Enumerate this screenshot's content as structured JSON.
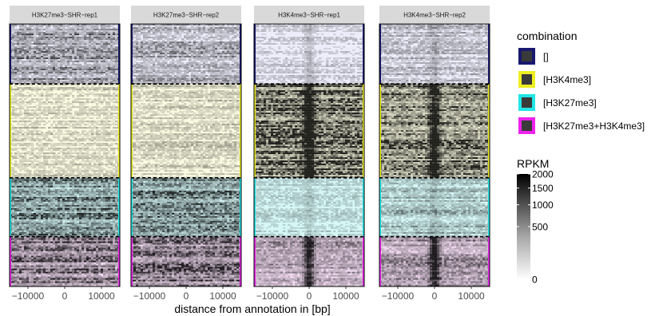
{
  "chart_data": {
    "type": "heatmap",
    "title": "",
    "xlabel": "distance from annotation in [bp]",
    "ylabel": "",
    "xlim": [
      -15000,
      15000
    ],
    "x_ticks": [
      -10000,
      0,
      10000
    ],
    "x_tick_labels": [
      "−10000",
      "0",
      "10000"
    ],
    "panels": [
      "H3K27me3−SHR−rep1",
      "H3K27me3−SHR−rep2",
      "H3K4me3−SHR−rep1",
      "H3K4me3−SHR−rep2"
    ],
    "groups": [
      {
        "name": "[]",
        "color": "#191970",
        "tint": "#ececfa"
      },
      {
        "name": "[H3K4me3]",
        "color": "#eeee22",
        "tint": "#fbfbe2"
      },
      {
        "name": "[H3K27me3]",
        "color": "#22e6e6",
        "tint": "#d6f7f7"
      },
      {
        "name": "[H3K27me3+H3K4me3]",
        "color": "#ee22ee",
        "tint": "#f2dcf2"
      }
    ],
    "group_row_fractions": [
      0.265,
      0.415,
      0.26,
      0.22
    ],
    "mean_signal": [
      [
        0.3,
        0.25,
        0.12,
        0.18
      ],
      [
        0.15,
        0.16,
        0.55,
        0.5
      ],
      [
        0.42,
        0.4,
        0.12,
        0.22
      ],
      [
        0.45,
        0.42,
        0.25,
        0.28
      ]
    ],
    "center_peak": [
      [
        0.0,
        0.0,
        0.15,
        0.1
      ],
      [
        0.0,
        0.0,
        0.95,
        0.95
      ],
      [
        0.0,
        0.0,
        0.1,
        0.1
      ],
      [
        0.05,
        0.05,
        0.9,
        0.85
      ]
    ],
    "legend": {
      "combination_title": "combination",
      "color_title": "RPKM",
      "color_ticks": [
        "2000",
        "1500",
        "1000",
        "500",
        "0"
      ],
      "color_tick_values": [
        2000,
        1500,
        1000,
        500,
        0
      ],
      "color_scale": "sqrt",
      "color_range": [
        0,
        2000
      ],
      "placement": "right"
    }
  }
}
